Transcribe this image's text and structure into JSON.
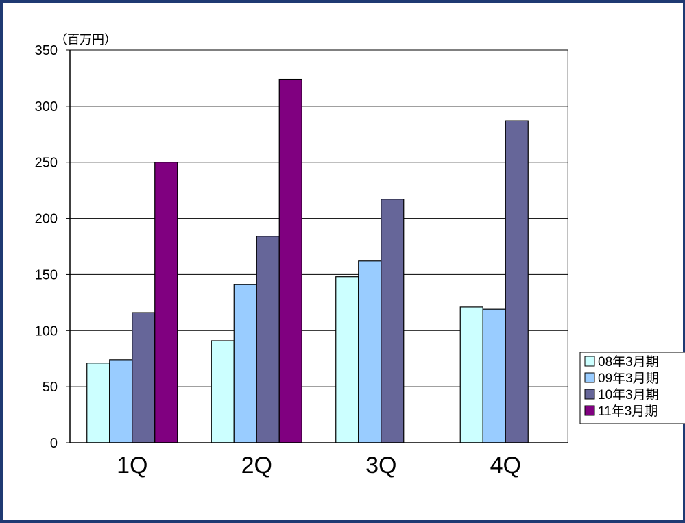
{
  "chart_data": {
    "type": "bar",
    "unit_label": "（百万円）",
    "categories": [
      "1Q",
      "2Q",
      "3Q",
      "4Q"
    ],
    "series": [
      {
        "name": "08年3月期",
        "color": "#ccffff",
        "values": [
          71,
          91,
          148,
          121
        ]
      },
      {
        "name": "09年3月期",
        "color": "#99ccff",
        "values": [
          74,
          141,
          162,
          119
        ]
      },
      {
        "name": "10年3月期",
        "color": "#666699",
        "values": [
          116,
          184,
          217,
          287
        ]
      },
      {
        "name": "11年3月期",
        "color": "#800080",
        "values": [
          250,
          324,
          null,
          null
        ]
      }
    ],
    "yticks": [
      0,
      50,
      100,
      150,
      200,
      250,
      300,
      350
    ],
    "ylim": [
      0,
      350
    ],
    "grid": true,
    "legend_position": "right"
  }
}
